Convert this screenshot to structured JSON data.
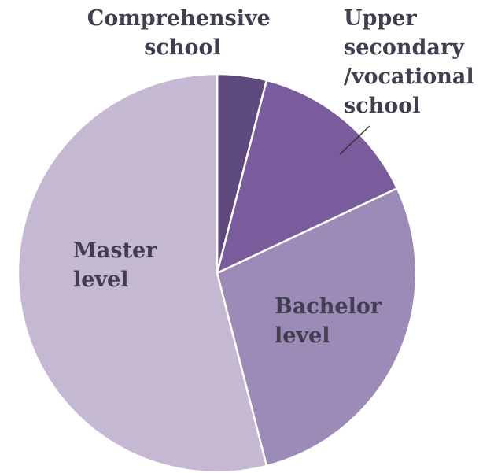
{
  "chart_data": {
    "type": "pie",
    "categories": [
      "Comprehensive school",
      "Upper secondary /vocational school",
      "Bachelor level",
      "Master level"
    ],
    "values": [
      4,
      14,
      28,
      54
    ],
    "colors": [
      "#5f4a80",
      "#7a5b9b",
      "#9b8bb6",
      "#c4b8d2"
    ]
  }
}
